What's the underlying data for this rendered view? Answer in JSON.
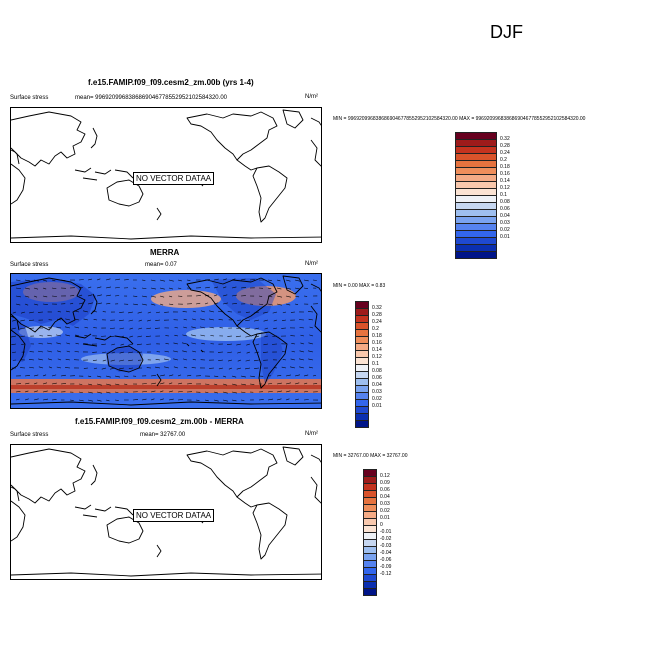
{
  "season": "DJF",
  "panels": [
    {
      "title": "f.e15.FAMIP.f09_f09.cesm2_zm.00b (yrs 1-4)",
      "left_label": "Surface stress",
      "mean_text": "mean= 9969209968386869046778552952102584320.00",
      "units": "N/m²",
      "minmax_text": "MIN = 9969209968386869046778552952102584320.00 MAX = 9969209968386869046778552952102584320.00",
      "no_data_text": [
        "N",
        "O VECTOR DATA",
        "A"
      ],
      "colorbar_labels": [
        "0.32",
        "0.28",
        "0.24",
        "0.2",
        "0.18",
        "0.16",
        "0.14",
        "0.12",
        "0.1",
        "0.08",
        "0.06",
        "0.04",
        "0.03",
        "0.02",
        "0.01"
      ]
    },
    {
      "title": "MERRA",
      "left_label": "Surface stress",
      "mean_text": "mean=   0.07",
      "units": "N/m²",
      "minmax_text": "MIN =   0.00 MAX =   0.83",
      "colorbar_labels": [
        "0.32",
        "0.28",
        "0.24",
        "0.2",
        "0.18",
        "0.16",
        "0.14",
        "0.12",
        "0.1",
        "0.08",
        "0.06",
        "0.04",
        "0.03",
        "0.02",
        "0.01"
      ]
    },
    {
      "title": "f.e15.FAMIP.f09_f09.cesm2_zm.00b - MERRA",
      "left_label": "Surface stress",
      "mean_text": "mean= 32767.00",
      "units": "N/m²",
      "minmax_text": "MIN = 32767.00 MAX = 32767.00",
      "no_data_text": [
        "N",
        "O VECTOR DATA",
        "A"
      ],
      "colorbar_labels": [
        "0.12",
        "0.09",
        "0.06",
        "0.04",
        "0.03",
        "0.02",
        "0.01",
        "0",
        "-0.01",
        "-0.02",
        "-0.03",
        "-0.04",
        "-0.06",
        "-0.09",
        "-0.12"
      ]
    }
  ],
  "colors": {
    "scale": [
      "#67001f",
      "#9e1b1b",
      "#c4331f",
      "#d9532b",
      "#e6733f",
      "#ef8e5b",
      "#f4ab86",
      "#f8c8ad",
      "#fbe3d3",
      "#eef1f6",
      "#c6d7f1",
      "#9ebff0",
      "#7aa3f0",
      "#5683ef",
      "#3366ec",
      "#1f49d0",
      "#0b2fb0",
      "#001488"
    ]
  }
}
